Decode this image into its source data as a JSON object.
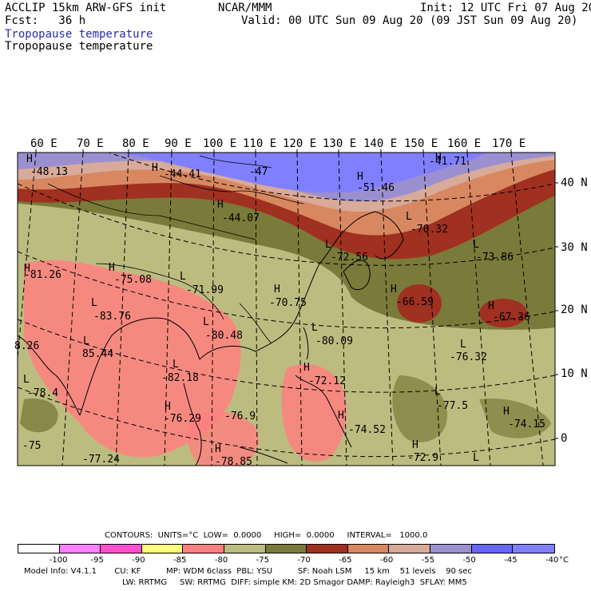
{
  "header": {
    "model": "ACCLIP 15km ARW-GFS init",
    "fcst": "Fcst:   36 h",
    "center": "NCAR/MMM",
    "init": "Init: 12 UTC Fri 07 Aug 20",
    "valid": "Valid: 00 UTC Sun 09 Aug 20 (09 JST Sun 09 Aug 20)",
    "field_title_1": "Tropopause temperature",
    "field_title_2": "Tropopause temperature"
  },
  "axes": {
    "lon_labels": [
      "60 E",
      "70 E",
      "80 E",
      "90 E",
      "100 E",
      "110 E",
      "120 E",
      "130 E",
      "140 E",
      "150 E",
      "160 E",
      "170 E"
    ],
    "lat_labels": [
      "40 N",
      "30 N",
      "20 N",
      "10 N",
      "0"
    ]
  },
  "map_annotations": [
    {
      "t": "H"
    },
    {
      "t": "-48.13"
    },
    {
      "t": "H"
    },
    {
      "t": "-44.41"
    },
    {
      "t": "-47"
    },
    {
      "t": "H"
    },
    {
      "t": "-51.46"
    },
    {
      "t": "H"
    },
    {
      "t": "-41.71"
    },
    {
      "t": "H"
    },
    {
      "t": "-44.07"
    },
    {
      "t": "L"
    },
    {
      "t": "-70.32"
    },
    {
      "t": "L"
    },
    {
      "t": "-72.56"
    },
    {
      "t": "L"
    },
    {
      "t": "-73.86"
    },
    {
      "t": "H"
    },
    {
      "t": "-81.26"
    },
    {
      "t": "H"
    },
    {
      "t": "-75.08"
    },
    {
      "t": "L"
    },
    {
      "t": "-71.99"
    },
    {
      "t": "H"
    },
    {
      "t": "-70.75"
    },
    {
      "t": "H"
    },
    {
      "t": "-66.59"
    },
    {
      "t": "H"
    },
    {
      "t": "-67.36"
    },
    {
      "t": "L"
    },
    {
      "t": "-83.76"
    },
    {
      "t": "L"
    },
    {
      "t": "-80.48"
    },
    {
      "t": "L"
    },
    {
      "t": "-80.09"
    },
    {
      "t": "8.26"
    },
    {
      "t": "L"
    },
    {
      "t": "85.44"
    },
    {
      "t": "L"
    },
    {
      "t": "-76.32"
    },
    {
      "t": "L"
    },
    {
      "t": "-82.18"
    },
    {
      "t": "H"
    },
    {
      "t": "-72.12"
    },
    {
      "t": "L"
    },
    {
      "t": "-78.4"
    },
    {
      "t": "L"
    },
    {
      "t": "-77.5"
    },
    {
      "t": "H"
    },
    {
      "t": "-76.29"
    },
    {
      "t": "-76.9"
    },
    {
      "t": "H"
    },
    {
      "t": "-74.52"
    },
    {
      "t": "H"
    },
    {
      "t": "-74.15"
    },
    {
      "t": "-75"
    },
    {
      "t": "H"
    },
    {
      "t": "-77.24"
    },
    {
      "t": "H"
    },
    {
      "t": "-78.85"
    },
    {
      "t": "-72.9"
    },
    {
      "t": "L"
    }
  ],
  "legend": {
    "contours_line": "CONTOURS:  UNITS=°C  LOW=  0.0000     HIGH=  0.0000     INTERVAL=   1000.0",
    "bins": [
      {
        "color": "#ffffff",
        "label": "-100"
      },
      {
        "color": "#ff80ff",
        "label": "-95"
      },
      {
        "color": "#ff50d0",
        "label": "-90"
      },
      {
        "color": "#ffff80",
        "label": "-85"
      },
      {
        "color": "#ff8080",
        "label": "-80"
      },
      {
        "color": "#bcbc80",
        "label": "-75"
      },
      {
        "color": "#7a7a3a",
        "label": "-70"
      },
      {
        "color": "#a03020",
        "label": "-65"
      },
      {
        "color": "#d88860",
        "label": "-60"
      },
      {
        "color": "#d8aa9a",
        "label": "-55"
      },
      {
        "color": "#9a90d0",
        "label": "-50"
      },
      {
        "color": "#6666ff",
        "label": "-45"
      },
      {
        "color": "#8080ff",
        "label": "-40"
      },
      {
        "color": "#8080ff",
        "label": "°C"
      }
    ]
  },
  "model_info_1": "Model Info: V4.1.1       CU: KF          MP: WDM 6class  PBL: YSU          SF: Noah LSM     15 km    51 levels    90 sec",
  "model_info_2": "LW: RRTMG     SW: RRTMG  DIFF: simple KM: 2D Smagor DAMP: Rayleigh3  SFLAY: MM5"
}
